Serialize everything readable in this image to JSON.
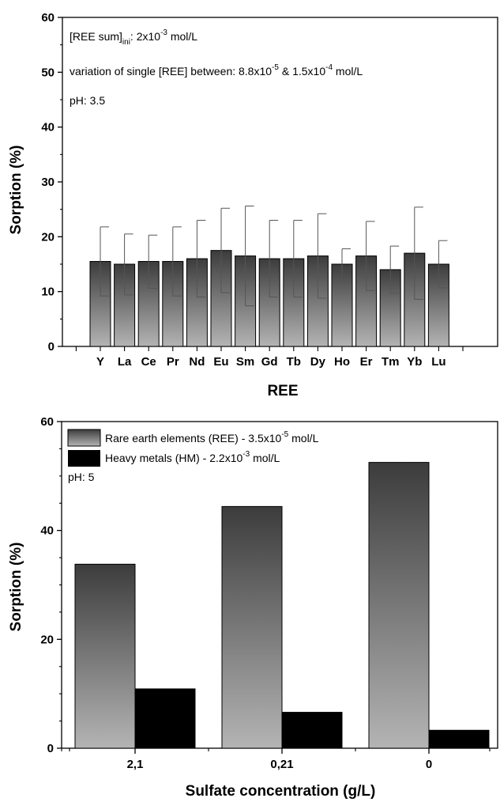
{
  "chart_data": [
    {
      "type": "bar",
      "title": "",
      "xlabel": "REE",
      "ylabel": "Sorption (%)",
      "ylim": [
        0,
        60
      ],
      "yticks": [
        "0",
        "10",
        "20",
        "30",
        "40",
        "50",
        "60"
      ],
      "categories": [
        "Y",
        "La",
        "Ce",
        "Pr",
        "Nd",
        "Eu",
        "Sm",
        "Gd",
        "Tb",
        "Dy",
        "Ho",
        "Er",
        "Tm",
        "Yb",
        "Lu"
      ],
      "values": [
        15.5,
        15.0,
        15.5,
        15.5,
        16.0,
        17.5,
        16.5,
        16.0,
        16.0,
        16.5,
        15.0,
        16.5,
        14.0,
        17.0,
        15.0
      ],
      "error_upper": [
        21.8,
        20.5,
        20.3,
        21.8,
        23.0,
        25.2,
        25.6,
        23.0,
        23.0,
        24.2,
        17.8,
        22.8,
        18.3,
        25.4,
        19.3
      ],
      "error_lower": [
        9.2,
        9.4,
        10.6,
        9.2,
        9.0,
        9.8,
        7.4,
        9.0,
        9.0,
        8.8,
        12.2,
        10.2,
        9.7,
        8.6,
        10.7
      ],
      "annotations": {
        "line1_main": "[REE sum]",
        "line1_sub": "ini",
        "line1_rest": ": 2x10",
        "line1_sup": "-3",
        "line1_unit": " mol/L",
        "line2_main": "variation of single [REE] between: 8.8x10",
        "line2_sup1": "-5",
        "line2_mid": " & 1.5x10",
        "line2_sup2": "-4",
        "line2_unit": " mol/L",
        "line3": "pH: 3.5"
      },
      "grid": false
    },
    {
      "type": "bar",
      "title": "",
      "xlabel": "Sulfate concentration (g/L)",
      "ylabel": "Sorption (%)",
      "ylim": [
        0,
        60
      ],
      "yticks": [
        "0",
        "20",
        "40",
        "60"
      ],
      "categories": [
        "2,1",
        "0,21",
        "0"
      ],
      "series": [
        {
          "name": "Rare earth elements (REE) - 3.5x10-5 mol/L",
          "values": [
            33.8,
            44.4,
            52.5
          ]
        },
        {
          "name": "Heavy metals (HM) - 2.2x10-3 mol/L",
          "values": [
            10.9,
            6.6,
            3.3
          ]
        }
      ],
      "legend": {
        "placement": "top-left",
        "ree_main": "Rare earth elements (REE) - 3.5x10",
        "ree_sup": "-5",
        "ree_unit": " mol/L",
        "hm_main": "Heavy metals (HM) - 2.2x10",
        "hm_sup": "-3",
        "hm_unit": " mol/L"
      },
      "annotations": {
        "ph": "pH: 5"
      },
      "grid": false
    }
  ],
  "colors": {
    "gradient_top": "#3c3c3c",
    "gradient_bottom": "#b4b4b4",
    "hm_bar": "#000000"
  }
}
